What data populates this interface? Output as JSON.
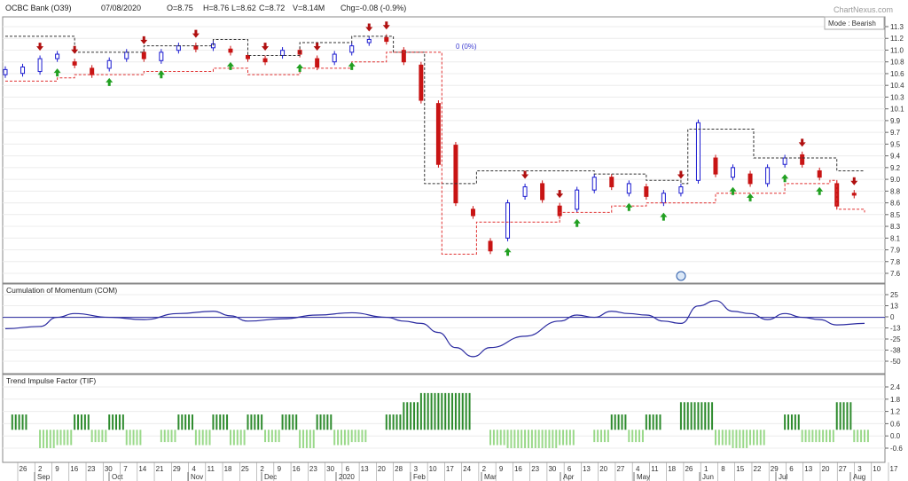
{
  "header": {
    "title": "OCBC Bank (O39)",
    "date": "07/08/2020",
    "open": "O=8.75",
    "high": "H=8.76",
    "low": "L=8.62",
    "close": "C=8.72",
    "volume": "V=8.14M",
    "change": "Chg=-0.08 (-0.9%)",
    "watermark": "ChartNexus.com",
    "mode": "Mode : Bearish",
    "marker": "0 (0%)"
  },
  "colors": {
    "up": "#1a1ad0",
    "down": "#c81414",
    "trail_upper": "#333333",
    "trail_lower": "#e03030",
    "com_line": "#2a2aa0",
    "tif_pos": "#2e8b2e",
    "tif_neg": "#9ad98a",
    "arrow_up": "#22a022",
    "arrow_down": "#b01010"
  },
  "panels": [
    {
      "name": "price",
      "title": ""
    },
    {
      "name": "com",
      "title": "Cumulation of Momentum (COM)"
    },
    {
      "name": "tif",
      "title": "Trend Impulse Factor (TIF)"
    }
  ],
  "x_axis": {
    "days": [
      "26",
      "2",
      "9",
      "16",
      "23",
      "30",
      "7",
      "14",
      "21",
      "29",
      "4",
      "11",
      "18",
      "25",
      "2",
      "9",
      "16",
      "23",
      "30",
      "6",
      "13",
      "20",
      "28",
      "3",
      "10",
      "17",
      "24",
      "2",
      "9",
      "16",
      "23",
      "30",
      "6",
      "13",
      "20",
      "27",
      "4",
      "11",
      "18",
      "26",
      "1",
      "8",
      "15",
      "22",
      "29",
      "6",
      "13",
      "20",
      "27",
      "3",
      "10",
      "17"
    ],
    "months": [
      "Sep",
      "Oct",
      "Nov",
      "Dec",
      "2020",
      "Feb",
      "Mar",
      "Apr",
      "May",
      "Jun",
      "Jul",
      "Aug"
    ]
  },
  "chart_data": [
    {
      "type": "candlestick",
      "title": "OCBC Bank (O39)",
      "yticks": [
        "11.3",
        "11.2",
        "11.0",
        "10.8",
        "10.6",
        "10.4",
        "10.3",
        "10.1",
        "9.9",
        "9.7",
        "9.5",
        "9.4",
        "9.2",
        "9.0",
        "8.8",
        "8.6",
        "8.5",
        "8.3",
        "8.1",
        "7.9",
        "7.8",
        "7.6"
      ],
      "ylim": [
        7.5,
        11.35
      ],
      "series": [
        {
          "name": "price",
          "values": [
            [
              0,
              10.6,
              10.68
            ],
            [
              5,
              10.62,
              10.72
            ],
            [
              10,
              10.65,
              10.85
            ],
            [
              15,
              10.85,
              10.92
            ],
            [
              20,
              10.8,
              10.75
            ],
            [
              25,
              10.7,
              10.6
            ],
            [
              30,
              10.7,
              10.82
            ],
            [
              35,
              10.85,
              10.95
            ],
            [
              40,
              10.95,
              10.85
            ],
            [
              45,
              10.82,
              10.95
            ],
            [
              50,
              10.98,
              11.05
            ],
            [
              55,
              11.05,
              11.0
            ],
            [
              60,
              11.02,
              11.08
            ],
            [
              65,
              11.0,
              10.95
            ],
            [
              70,
              10.9,
              10.85
            ],
            [
              75,
              10.85,
              10.8
            ],
            [
              80,
              10.9,
              10.98
            ],
            [
              85,
              10.98,
              10.92
            ],
            [
              90,
              10.85,
              10.72
            ],
            [
              95,
              10.8,
              10.92
            ],
            [
              100,
              10.95,
              11.05
            ],
            [
              105,
              11.1,
              11.15
            ],
            [
              110,
              11.18,
              11.12
            ],
            [
              115,
              10.98,
              10.8
            ],
            [
              120,
              10.75,
              10.2
            ],
            [
              125,
              10.15,
              9.2
            ],
            [
              130,
              9.5,
              8.6
            ],
            [
              135,
              8.5,
              8.4
            ],
            [
              140,
              8.0,
              7.85
            ],
            [
              145,
              8.05,
              8.6
            ],
            [
              150,
              8.7,
              8.85
            ],
            [
              155,
              8.9,
              8.65
            ],
            [
              160,
              8.55,
              8.4
            ],
            [
              165,
              8.5,
              8.8
            ],
            [
              170,
              8.8,
              9.0
            ],
            [
              175,
              9.0,
              8.85
            ],
            [
              180,
              8.75,
              8.9
            ],
            [
              185,
              8.85,
              8.7
            ],
            [
              190,
              8.6,
              8.75
            ],
            [
              195,
              8.75,
              8.85
            ],
            [
              200,
              8.95,
              9.85
            ],
            [
              205,
              9.3,
              9.05
            ],
            [
              210,
              9.0,
              9.15
            ],
            [
              215,
              9.05,
              8.9
            ],
            [
              220,
              8.9,
              9.15
            ],
            [
              225,
              9.2,
              9.3
            ],
            [
              230,
              9.35,
              9.2
            ],
            [
              235,
              9.1,
              9.0
            ],
            [
              240,
              8.9,
              8.55
            ],
            [
              245,
              8.75,
              8.72
            ]
          ]
        },
        {
          "name": "upper-trail",
          "values": [
            [
              0,
              11.2
            ],
            [
              15,
              11.2
            ],
            [
              20,
              10.95
            ],
            [
              40,
              11.05
            ],
            [
              60,
              11.15
            ],
            [
              70,
              10.9
            ],
            [
              85,
              11.1
            ],
            [
              100,
              11.2
            ],
            [
              110,
              11.2
            ],
            [
              112,
              10.95
            ],
            [
              120,
              10.95
            ],
            [
              121,
              8.9
            ],
            [
              135,
              8.9
            ],
            [
              136,
              9.1
            ],
            [
              160,
              9.1
            ],
            [
              170,
              9.05
            ],
            [
              185,
              8.95
            ],
            [
              195,
              8.9
            ],
            [
              197,
              9.75
            ],
            [
              215,
              9.75
            ],
            [
              216,
              9.3
            ],
            [
              230,
              9.3
            ],
            [
              240,
              9.1
            ],
            [
              248,
              9.1
            ]
          ]
        },
        {
          "name": "lower-trail",
          "values": [
            [
              0,
              10.5
            ],
            [
              15,
              10.55
            ],
            [
              20,
              10.6
            ],
            [
              40,
              10.65
            ],
            [
              60,
              10.7
            ],
            [
              70,
              10.6
            ],
            [
              85,
              10.7
            ],
            [
              100,
              10.8
            ],
            [
              110,
              10.95
            ],
            [
              120,
              10.95
            ],
            [
              125,
              10.95
            ],
            [
              126,
              7.8
            ],
            [
              135,
              7.8
            ],
            [
              136,
              8.3
            ],
            [
              150,
              8.3
            ],
            [
              160,
              8.45
            ],
            [
              175,
              8.55
            ],
            [
              185,
              8.6
            ],
            [
              195,
              8.6
            ],
            [
              205,
              8.75
            ],
            [
              215,
              8.75
            ],
            [
              225,
              8.9
            ],
            [
              238,
              8.95
            ],
            [
              240,
              8.5
            ],
            [
              248,
              8.45
            ]
          ]
        }
      ]
    },
    {
      "type": "line",
      "title": "Cumulation of Momentum (COM)",
      "yticks": [
        "25",
        "13",
        "0",
        "-13",
        "-25",
        "-38",
        "-50"
      ],
      "ylim": [
        -58,
        30
      ],
      "series": [
        {
          "name": "COM",
          "values": [
            [
              0,
              -15
            ],
            [
              10,
              -12
            ],
            [
              15,
              0
            ],
            [
              20,
              5
            ],
            [
              30,
              0
            ],
            [
              40,
              -3
            ],
            [
              50,
              5
            ],
            [
              60,
              8
            ],
            [
              65,
              2
            ],
            [
              70,
              -5
            ],
            [
              80,
              -2
            ],
            [
              90,
              3
            ],
            [
              100,
              6
            ],
            [
              110,
              0
            ],
            [
              115,
              -5
            ],
            [
              120,
              -8
            ],
            [
              125,
              -20
            ],
            [
              130,
              -40
            ],
            [
              135,
              -52
            ],
            [
              140,
              -40
            ],
            [
              150,
              -25
            ],
            [
              160,
              -5
            ],
            [
              165,
              3
            ],
            [
              170,
              0
            ],
            [
              175,
              8
            ],
            [
              180,
              5
            ],
            [
              185,
              3
            ],
            [
              190,
              -5
            ],
            [
              195,
              -8
            ],
            [
              200,
              15
            ],
            [
              205,
              22
            ],
            [
              210,
              8
            ],
            [
              215,
              5
            ],
            [
              220,
              -3
            ],
            [
              225,
              5
            ],
            [
              230,
              0
            ],
            [
              235,
              -3
            ],
            [
              240,
              -10
            ],
            [
              248,
              -8
            ]
          ]
        }
      ]
    },
    {
      "type": "bar",
      "title": "Trend Impulse Factor (TIF)",
      "yticks": [
        "2.4",
        "1.8",
        "1.2",
        "0.6",
        "0.0",
        "-0.6"
      ],
      "ylim": [
        -1.2,
        2.8
      ],
      "series": [
        {
          "name": "TIF-positive",
          "values": [
            [
              2,
              1.0
            ],
            [
              20,
              1.0
            ],
            [
              30,
              1.0
            ],
            [
              50,
              1.0
            ],
            [
              60,
              1.0
            ],
            [
              70,
              1.0
            ],
            [
              80,
              1.0
            ],
            [
              90,
              1.0
            ],
            [
              110,
              1.0
            ],
            [
              115,
              1.8
            ],
            [
              120,
              2.4
            ],
            [
              125,
              2.4
            ],
            [
              130,
              2.4
            ],
            [
              175,
              1.0
            ],
            [
              185,
              1.0
            ],
            [
              195,
              1.8
            ],
            [
              200,
              1.8
            ],
            [
              225,
              1.0
            ],
            [
              240,
              1.8
            ]
          ]
        },
        {
          "name": "TIF-negative",
          "values": [
            [
              10,
              -1.2
            ],
            [
              15,
              -1.0
            ],
            [
              25,
              -0.8
            ],
            [
              35,
              -1.0
            ],
            [
              45,
              -0.8
            ],
            [
              55,
              -1.0
            ],
            [
              65,
              -1.0
            ],
            [
              75,
              -0.8
            ],
            [
              85,
              -1.2
            ],
            [
              95,
              -1.0
            ],
            [
              100,
              -0.8
            ],
            [
              140,
              -1.0
            ],
            [
              145,
              -1.2
            ],
            [
              150,
              -1.2
            ],
            [
              155,
              -1.2
            ],
            [
              160,
              -1.0
            ],
            [
              170,
              -0.8
            ],
            [
              180,
              -0.8
            ],
            [
              205,
              -1.0
            ],
            [
              210,
              -1.2
            ],
            [
              215,
              -1.0
            ],
            [
              230,
              -0.8
            ],
            [
              235,
              -0.8
            ],
            [
              245,
              -0.8
            ]
          ]
        }
      ]
    }
  ]
}
